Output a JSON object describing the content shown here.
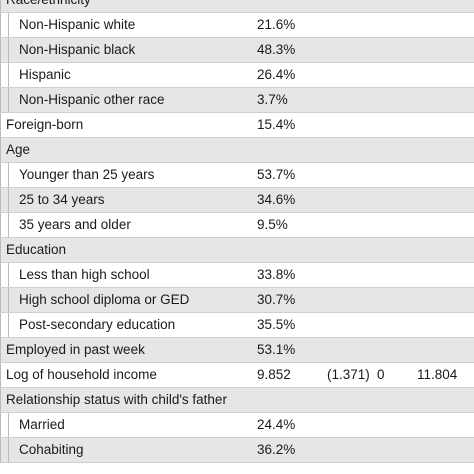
{
  "table": {
    "rows": [
      {
        "heading": "Race/ethnicity",
        "items": [
          [
            "Non-Hispanic white",
            "21.6%"
          ],
          [
            "Non-Hispanic black",
            "48.3%"
          ],
          [
            "Hispanic",
            "26.4%"
          ],
          [
            "Non-Hispanic other race",
            "3.7%"
          ]
        ]
      },
      [
        "Foreign-born",
        "15.4%"
      ],
      {
        "heading": "Age",
        "items": [
          [
            "Younger than 25 years",
            "53.7%"
          ],
          [
            "25 to 34 years",
            "34.6%"
          ],
          [
            "35 years and older",
            "9.5%"
          ]
        ]
      },
      {
        "heading": "Education",
        "items": [
          [
            "Less than high school",
            "33.8%"
          ],
          [
            "High school diploma or GED",
            "30.7%"
          ],
          [
            "Post-secondary education",
            "35.5%"
          ]
        ]
      },
      [
        "Employed in past week",
        "53.1%"
      ],
      [
        "Log of household income",
        "9.852",
        "(1.371)",
        "0",
        "11.804"
      ],
      {
        "heading": "Relationship status with child's father",
        "items": [
          [
            "Married",
            "24.4%"
          ],
          [
            "Cohabiting",
            "36.2%"
          ]
        ]
      }
    ]
  }
}
